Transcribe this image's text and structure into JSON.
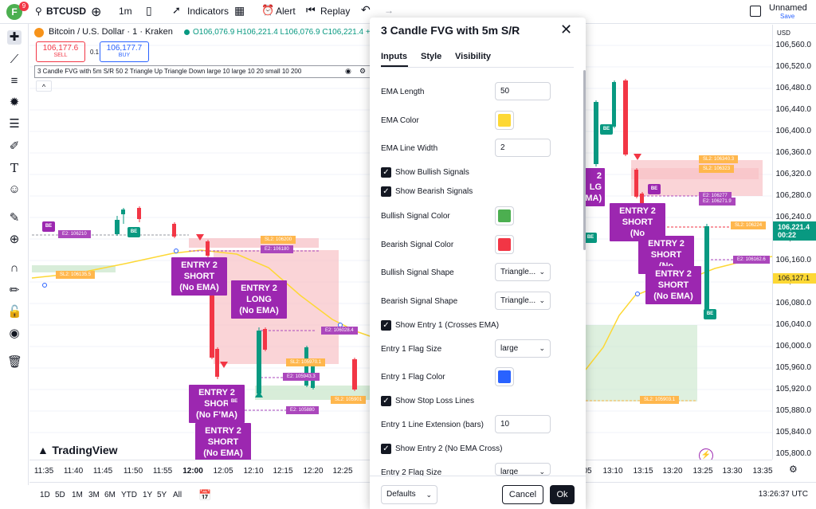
{
  "topbar": {
    "avatar_letter": "F",
    "avatar_badge": "9",
    "symbol": "BTCUSD",
    "interval": "1m",
    "indicators_label": "Indicators",
    "alert_label": "Alert",
    "replay_label": "Replay",
    "layout_name": "Unnamed",
    "layout_status": "Save"
  },
  "legend": {
    "title": "Bitcoin / U.S. Dollar · 1 · Kraken",
    "ohlc": "O106,076.9 H106,221.4 L106,076.9 C106,221.4 +1",
    "sell_price": "106,177.6",
    "sell_label": "SELL",
    "spread": "0.1",
    "buy_price": "106,177.7",
    "buy_label": "BUY",
    "indicator_line": "3 Candle FVG with 5m S/R 50 2 Triangle Up Triangle Down large 10 large 10 20 small 10 200",
    "collapse": "^"
  },
  "price_axis": {
    "currency": "USD",
    "labels": [
      "106,560.0",
      "106,520.0",
      "106,480.0",
      "106,440.0",
      "106,400.0",
      "106,360.0",
      "106,320.0",
      "106,280.0",
      "106,240.0",
      "106,200.0",
      "106,160.0",
      "106,120.0",
      "106,080.0",
      "106,040.0",
      "106,000.0",
      "105,960.0",
      "105,920.0",
      "105,880.0",
      "105,840.0",
      "105,800.0"
    ],
    "current_price": "106,221.4",
    "countdown": "00:22",
    "ema_price": "106,127.1"
  },
  "time_axis": {
    "labels": [
      "11:35",
      "11:40",
      "11:45",
      "11:50",
      "11:55",
      "12:00",
      "12:05",
      "12:10",
      "12:15",
      "12:20",
      "12:25",
      "05",
      "13:10",
      "13:15",
      "13:20",
      "13:25",
      "13:30",
      "13:35"
    ]
  },
  "bottombar": {
    "ranges": [
      "1D",
      "5D",
      "1M",
      "3M",
      "6M",
      "YTD",
      "1Y",
      "5Y",
      "All"
    ],
    "clock": "13:26:37 UTC"
  },
  "watermark": "TradingView",
  "flags": {
    "entry2_short_a": [
      "ENTRY 2",
      "SHORT",
      "(No EMA)"
    ],
    "entry2_long": [
      "ENTRY 2",
      "LONG",
      "(No EMA)"
    ],
    "entry2_short_b": [
      "ENTRY 2",
      "SHOR",
      "(No F’MA)"
    ],
    "entry2_short_c": [
      "ENTRY 2",
      "SHORT",
      "(No EMA)"
    ],
    "entry2_short_r1": [
      "ENTRY 2",
      "SHORT",
      "(No"
    ],
    "entry2_short_r2": [
      "ENTRY 2",
      "SHORT",
      "(No"
    ],
    "entry2_short_r3": [
      "ENTRY 2",
      "SHORT",
      "(No EMA)"
    ],
    "right_partial": [
      "2",
      "LG",
      "EMA)"
    ]
  },
  "tags": {
    "e2_106210": "E2: 106210",
    "sl2_106135": "SL2: 106135.5",
    "sl2_106200": "SL2: 106200",
    "e2_106180": "E2: 106180",
    "e2_106028": "E2: 106028.4",
    "sl2_105970": "SL2: 105970.1",
    "e2_105943": "E2: 105943.3",
    "sl2_105901": "SL2: 105901",
    "e2_105880": "E2: 105880",
    "sl2_105903": "SL2: 105903.1",
    "sl2_106340": "SL2: 106340.3",
    "sl2_106323": "SL2: 106323",
    "e2_106271": "E2: 106271.9",
    "e2_106277": "E2: 106277",
    "sl2_106224": "SL2: 106224",
    "e2_106162": "E2: 106162.6",
    "be": "BE"
  },
  "dialog": {
    "title": "3 Candle FVG with 5m S/R",
    "tabs": [
      "Inputs",
      "Style",
      "Visibility"
    ],
    "ema_length_label": "EMA Length",
    "ema_length_value": "50",
    "ema_color_label": "EMA Color",
    "ema_color": "#fdd835",
    "ema_width_label": "EMA Line Width",
    "ema_width_value": "2",
    "show_bull_label": "Show Bullish Signals",
    "show_bear_label": "Show Bearish Signals",
    "bull_color_label": "Bullish Signal Color",
    "bull_color": "#4caf50",
    "bear_color_label": "Bearish Signal Color",
    "bear_color": "#f23645",
    "bull_shape_label": "Bullish Signal Shape",
    "bull_shape_value": "Triangle...",
    "bear_shape_label": "Bearish Signal Shape",
    "bear_shape_value": "Triangle...",
    "show_entry1_label": "Show Entry 1 (Crosses EMA)",
    "entry1_size_label": "Entry 1 Flag Size",
    "entry1_size_value": "large",
    "entry1_color_label": "Entry 1 Flag Color",
    "entry1_color": "#2962ff",
    "show_sl_label": "Show Stop Loss Lines",
    "entry1_ext_label": "Entry 1 Line Extension (bars)",
    "entry1_ext_value": "10",
    "show_entry2_label": "Show Entry 2 (No EMA Cross)",
    "entry2_size_label": "Entry 2 Flag Size",
    "entry2_size_value": "large",
    "defaults_label": "Defaults",
    "cancel_label": "Cancel",
    "ok_label": "Ok"
  },
  "colors": {
    "bull": "#089981",
    "bear": "#f23645",
    "ema": "#fdd835",
    "flag": "#9c27b0",
    "accent": "#2962ff"
  }
}
